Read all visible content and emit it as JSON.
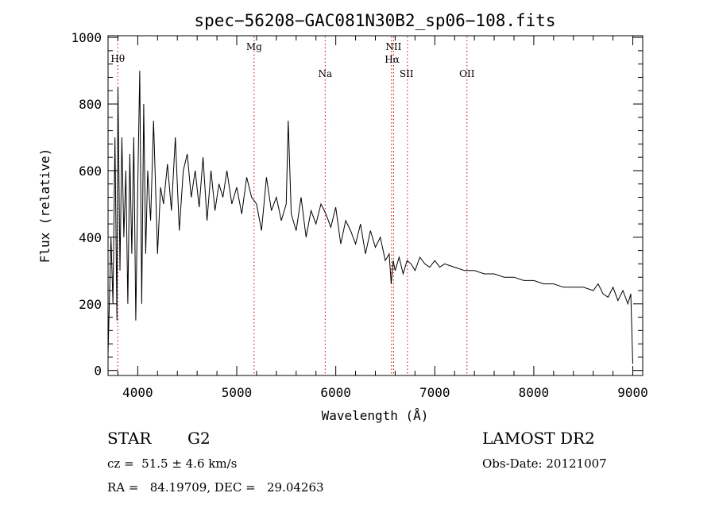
{
  "chart_data": {
    "type": "line",
    "title": "spec−56208−GAC081N30B2_sp06−108.fits",
    "xlabel": "Wavelength (Å)",
    "ylabel": "Flux (relative)",
    "xlim": [
      3700,
      9100
    ],
    "ylim": [
      -15,
      1005
    ],
    "x_ticks": [
      4000,
      5000,
      6000,
      7000,
      8000,
      9000
    ],
    "y_ticks": [
      0,
      200,
      400,
      600,
      800,
      1000
    ],
    "x_minor_step": 200,
    "y_minor_step": 40,
    "grid": false,
    "line_color": "#000000",
    "marker_color": "#cc0000",
    "x": [
      3700,
      3730,
      3750,
      3770,
      3790,
      3800,
      3820,
      3840,
      3860,
      3880,
      3900,
      3920,
      3940,
      3960,
      3980,
      4000,
      4020,
      4040,
      4060,
      4080,
      4100,
      4130,
      4160,
      4200,
      4230,
      4260,
      4300,
      4340,
      4380,
      4420,
      4460,
      4500,
      4540,
      4580,
      4620,
      4660,
      4700,
      4740,
      4780,
      4820,
      4860,
      4900,
      4950,
      5000,
      5050,
      5100,
      5150,
      5200,
      5250,
      5300,
      5350,
      5400,
      5450,
      5500,
      5520,
      5550,
      5600,
      5650,
      5700,
      5750,
      5800,
      5850,
      5900,
      5950,
      6000,
      6050,
      6100,
      6150,
      6200,
      6250,
      6300,
      6350,
      6400,
      6450,
      6500,
      6540,
      6560,
      6580,
      6600,
      6640,
      6680,
      6720,
      6760,
      6800,
      6850,
      6900,
      6950,
      7000,
      7050,
      7100,
      7200,
      7300,
      7400,
      7500,
      7600,
      7700,
      7800,
      7900,
      8000,
      8100,
      8200,
      8300,
      8400,
      8500,
      8600,
      8650,
      8700,
      8750,
      8800,
      8850,
      8900,
      8950,
      8980,
      9000
    ],
    "y": [
      50,
      400,
      200,
      700,
      150,
      850,
      300,
      700,
      400,
      600,
      200,
      650,
      350,
      700,
      150,
      550,
      900,
      200,
      800,
      350,
      600,
      450,
      750,
      350,
      550,
      500,
      620,
      480,
      700,
      420,
      600,
      650,
      520,
      600,
      490,
      640,
      450,
      600,
      480,
      560,
      520,
      600,
      500,
      550,
      470,
      580,
      520,
      500,
      420,
      580,
      480,
      520,
      450,
      500,
      750,
      470,
      420,
      520,
      400,
      480,
      440,
      500,
      470,
      430,
      490,
      380,
      450,
      420,
      380,
      440,
      350,
      420,
      370,
      400,
      330,
      350,
      260,
      330,
      300,
      340,
      290,
      330,
      320,
      300,
      340,
      320,
      310,
      330,
      310,
      320,
      310,
      300,
      300,
      290,
      290,
      280,
      280,
      270,
      270,
      260,
      260,
      250,
      250,
      250,
      240,
      260,
      230,
      220,
      250,
      210,
      240,
      200,
      230,
      20
    ],
    "lines": [
      {
        "label": "Hθ",
        "x": 3798
      },
      {
        "label": "Mg",
        "x": 5175
      },
      {
        "label": "Na",
        "x": 5893
      },
      {
        "label": "NII",
        "x": 6584
      },
      {
        "label": "Hα",
        "x": 6563
      },
      {
        "label": "SII",
        "x": 6724
      },
      {
        "label": "OII",
        "x": 7325
      }
    ]
  },
  "info": {
    "object_class": "STAR",
    "subclass": "G2",
    "redshift": "cz =  51.5 ± 4.6 km/s",
    "coordinates": "RA =   84.19709, DEC =   29.04263",
    "survey": "LAMOST DR2",
    "obs_date": "Obs-Date: 20121007"
  }
}
